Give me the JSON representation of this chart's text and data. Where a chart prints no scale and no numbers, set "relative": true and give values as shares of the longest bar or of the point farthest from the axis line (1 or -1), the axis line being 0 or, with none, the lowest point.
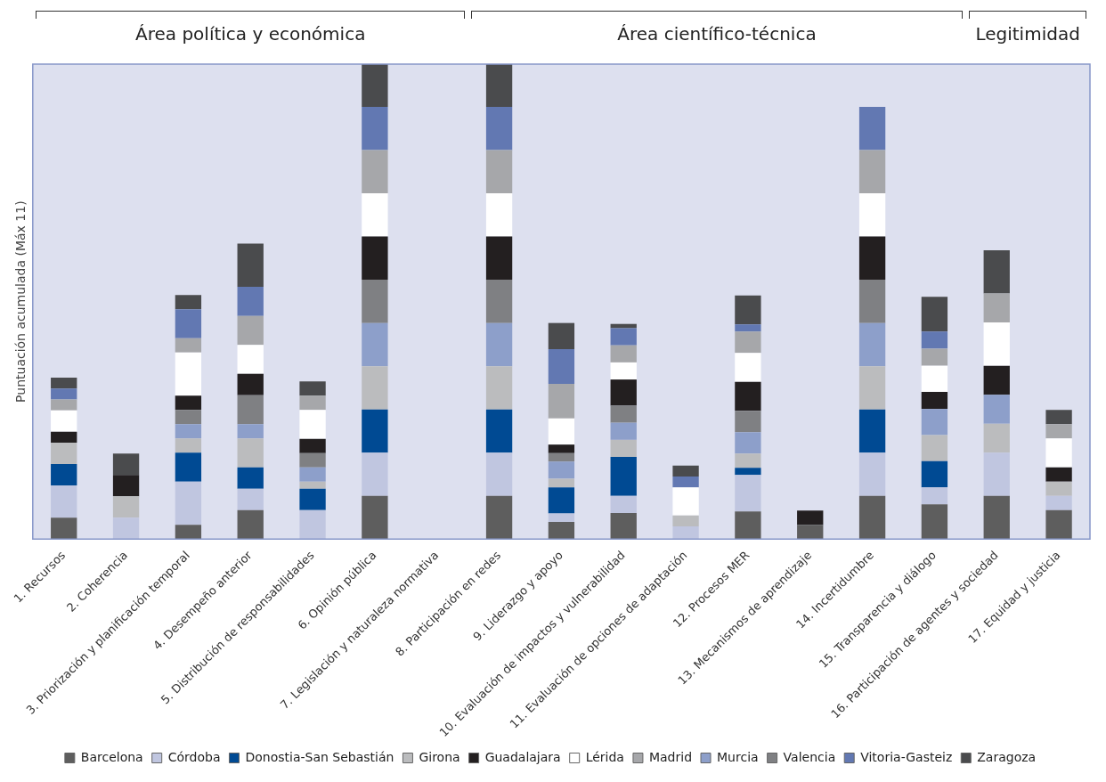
{
  "chart_data": {
    "type": "bar",
    "stacked": true,
    "relative": true,
    "ylabel": "Puntuación acumulada (Máx 11)",
    "legend": "bottom",
    "annotations": [
      "Área política y económica",
      "Área científico-técnica",
      "Legitimidad"
    ],
    "categories": [
      "1. Recursos",
      "2. Coherencia",
      "3. Priorización y planificación temporal",
      "4. Desempeño anterior",
      "5. Distribución de responsabilidades",
      "6. Opinión pública",
      "7. Legislación y naturaleza normativa",
      "8. Participación en redes",
      "9. Liderazgo y apoyo",
      "10. Evaluación de impactos y vulnerabilidad",
      "11. Evaluación de opciones de adaptación",
      "12. Procesos MER",
      "13. Mecanismos de aprendizaje",
      "14. Incertidumbre",
      "15. Transparencia y diálogo",
      "16. Participación de agentes y sociedad",
      "17. Equidad y justicia"
    ],
    "series": [
      {
        "name": "Barcelona",
        "color": "#5e5e5e",
        "values": [
          0.045,
          0,
          0.03,
          0.061,
          0,
          0.091,
          0,
          0.091,
          0.036,
          0.055,
          0,
          0.058,
          0.03,
          0.091,
          0.073,
          0.091,
          0.061
        ]
      },
      {
        "name": "Córdoba",
        "color": "#c0c6e0",
        "values": [
          0.068,
          0.045,
          0.091,
          0.045,
          0.061,
          0.091,
          0,
          0.091,
          0.018,
          0.036,
          0.027,
          0.077,
          0,
          0.091,
          0.036,
          0.091,
          0.03
        ]
      },
      {
        "name": "Donostia-San Sebastián",
        "color": "#004a93",
        "values": [
          0.045,
          0,
          0.061,
          0.045,
          0.045,
          0.091,
          0,
          0.091,
          0.055,
          0.082,
          0,
          0.015,
          0,
          0.091,
          0.055,
          0,
          0
        ]
      },
      {
        "name": "Girona",
        "color": "#bbbcbe",
        "values": [
          0.045,
          0.045,
          0.03,
          0.061,
          0.015,
          0.091,
          0,
          0.091,
          0.018,
          0.036,
          0.023,
          0.03,
          0,
          0.091,
          0.055,
          0.061,
          0.03
        ]
      },
      {
        "name": "Murcia",
        "color": "#8d9fca",
        "values": [
          0,
          0,
          0.03,
          0.03,
          0.03,
          0.091,
          0,
          0.091,
          0.036,
          0.036,
          0,
          0.045,
          0,
          0.091,
          0.055,
          0.061,
          0
        ]
      },
      {
        "name": "Valencia",
        "color": "#7f8083",
        "values": [
          0,
          0,
          0.03,
          0.061,
          0.03,
          0.091,
          0,
          0.091,
          0.018,
          0.036,
          0,
          0.045,
          0,
          0.091,
          0,
          0,
          0
        ]
      },
      {
        "name": "Guadalajara",
        "color": "#231f20",
        "values": [
          0.023,
          0.045,
          0.03,
          0.045,
          0.03,
          0.091,
          0,
          0.091,
          0.018,
          0.055,
          0,
          0.061,
          0.03,
          0.091,
          0.036,
          0.061,
          0.03
        ]
      },
      {
        "name": "Lérida",
        "color": "#ffffff",
        "values": [
          0.045,
          0,
          0.091,
          0.061,
          0.061,
          0.091,
          0,
          0.091,
          0.055,
          0.036,
          0.059,
          0.061,
          0,
          0.091,
          0.055,
          0.091,
          0.061
        ]
      },
      {
        "name": "Madrid",
        "color": "#a6a7aa",
        "values": [
          0.023,
          0,
          0.03,
          0.061,
          0.03,
          0.091,
          0,
          0.091,
          0.073,
          0.036,
          0,
          0.045,
          0,
          0.091,
          0.036,
          0.061,
          0.03
        ]
      },
      {
        "name": "Vitoria-Gasteiz",
        "color": "#6278b2",
        "values": [
          0.023,
          0,
          0.061,
          0.061,
          0,
          0.091,
          0,
          0.091,
          0.073,
          0.036,
          0.023,
          0.015,
          0,
          0.091,
          0.036,
          0,
          0
        ]
      },
      {
        "name": "Zaragoza",
        "color": "#4a4b4d",
        "values": [
          0.023,
          0.045,
          0.03,
          0.091,
          0.03,
          0.09,
          0,
          0.09,
          0.055,
          0.009,
          0.023,
          0.061,
          0,
          0,
          0.073,
          0.091,
          0.03
        ]
      }
    ]
  }
}
